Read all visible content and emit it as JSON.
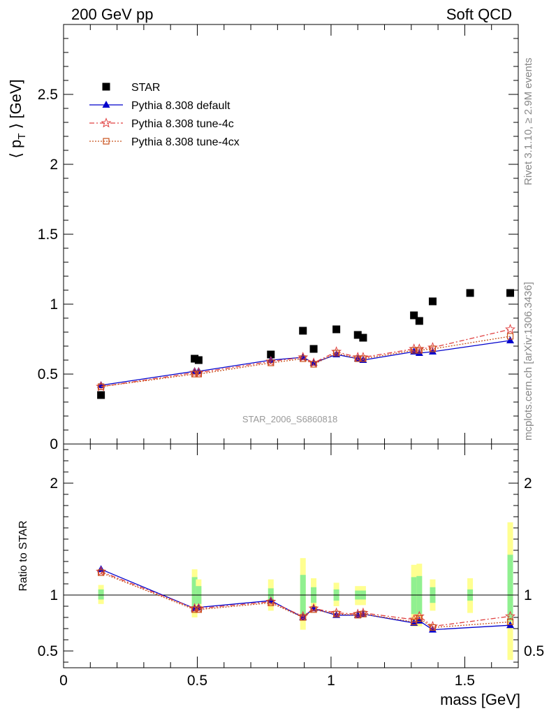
{
  "header": {
    "left": "200 GeV pp",
    "right": "Soft QCD"
  },
  "side": {
    "rivet": "Rivet 3.1.10, ≥ 2.9M events",
    "mcplots": "mcplots.cern.ch [arXiv:1306.3436]"
  },
  "watermark": "STAR_2006_S6860818",
  "colors": {
    "data": "#000000",
    "default": "#0000cc",
    "tune4c": "#e04040",
    "tune4cx": "#c8501a",
    "band_inner": "#90f090",
    "band_outer": "#ffff90"
  },
  "chart_data": [
    {
      "type": "scatter",
      "xlabel": "mass [GeV]",
      "ylabel": "⟨ p_T ⟩ [GeV]",
      "xlim": [
        0,
        1.7
      ],
      "ylim": [
        0,
        3.0
      ],
      "yticks": [
        "0",
        "0.5",
        "1",
        "1.5",
        "2",
        "2.5"
      ],
      "legend_position": "top-left",
      "x": [
        0.14,
        0.49,
        0.505,
        0.775,
        0.895,
        0.935,
        1.02,
        1.1,
        1.12,
        1.31,
        1.33,
        1.38,
        1.52,
        1.67
      ],
      "series": [
        {
          "name": "STAR",
          "marker": "square",
          "values": [
            0.35,
            0.61,
            0.6,
            0.64,
            0.81,
            0.68,
            0.82,
            0.78,
            0.76,
            0.92,
            0.88,
            1.02,
            1.08,
            1.08
          ]
        },
        {
          "name": "Pythia 8.308 default",
          "marker": "triangle",
          "values": [
            0.42,
            0.52,
            0.52,
            0.6,
            0.62,
            0.58,
            0.64,
            0.61,
            0.6,
            0.66,
            0.65,
            0.66,
            null,
            0.74
          ]
        },
        {
          "name": "Pythia 8.308 tune-4c",
          "marker": "star",
          "values": [
            0.41,
            0.51,
            0.51,
            0.59,
            0.62,
            0.58,
            0.66,
            0.62,
            0.62,
            0.68,
            0.68,
            0.69,
            null,
            0.82
          ]
        },
        {
          "name": "Pythia 8.308 tune-4cx",
          "marker": "open-square",
          "values": [
            0.41,
            0.5,
            0.5,
            0.58,
            0.61,
            0.57,
            0.65,
            0.61,
            0.61,
            0.67,
            0.67,
            0.68,
            null,
            0.77
          ]
        }
      ]
    },
    {
      "type": "line",
      "xlabel": "mass [GeV]",
      "ylabel": "Ratio to STAR",
      "xlim": [
        0,
        1.7
      ],
      "ylim": [
        0.35,
        2.35
      ],
      "yticks": [
        "0.5",
        "1",
        "2"
      ],
      "xticks": [
        "0",
        "0.5",
        "1",
        "1.5"
      ],
      "x": [
        0.14,
        0.49,
        0.505,
        0.775,
        0.895,
        0.935,
        1.02,
        1.1,
        1.12,
        1.31,
        1.33,
        1.38,
        1.52,
        1.67
      ],
      "bands": {
        "inner_low": [
          0.96,
          0.86,
          0.92,
          0.94,
          0.83,
          0.93,
          0.95,
          0.96,
          0.96,
          0.83,
          0.83,
          0.93,
          0.95,
          0.77
        ],
        "inner_high": [
          1.05,
          1.16,
          1.08,
          1.06,
          1.18,
          1.07,
          1.05,
          1.04,
          1.04,
          1.16,
          1.17,
          1.07,
          1.05,
          1.36
        ],
        "outer_low": [
          0.92,
          0.8,
          0.86,
          0.86,
          0.69,
          0.86,
          0.9,
          0.91,
          0.91,
          0.72,
          0.72,
          0.86,
          0.84,
          0.42
        ],
        "outer_high": [
          1.09,
          1.23,
          1.14,
          1.14,
          1.33,
          1.15,
          1.11,
          1.08,
          1.08,
          1.27,
          1.28,
          1.14,
          1.15,
          1.65
        ]
      },
      "series": [
        {
          "name": "Pythia 8.308 default",
          "values": [
            1.23,
            0.88,
            0.89,
            0.95,
            0.8,
            0.88,
            0.82,
            0.82,
            0.83,
            0.75,
            0.77,
            0.69,
            null,
            0.73
          ]
        },
        {
          "name": "Pythia 8.308 tune-4c",
          "values": [
            1.21,
            0.88,
            0.88,
            0.94,
            0.81,
            0.88,
            0.84,
            0.83,
            0.84,
            0.78,
            0.81,
            0.72,
            null,
            0.81
          ]
        },
        {
          "name": "Pythia 8.308 tune-4cx",
          "values": [
            1.2,
            0.87,
            0.87,
            0.93,
            0.8,
            0.87,
            0.83,
            0.82,
            0.83,
            0.76,
            0.79,
            0.71,
            null,
            0.76
          ]
        }
      ]
    }
  ]
}
